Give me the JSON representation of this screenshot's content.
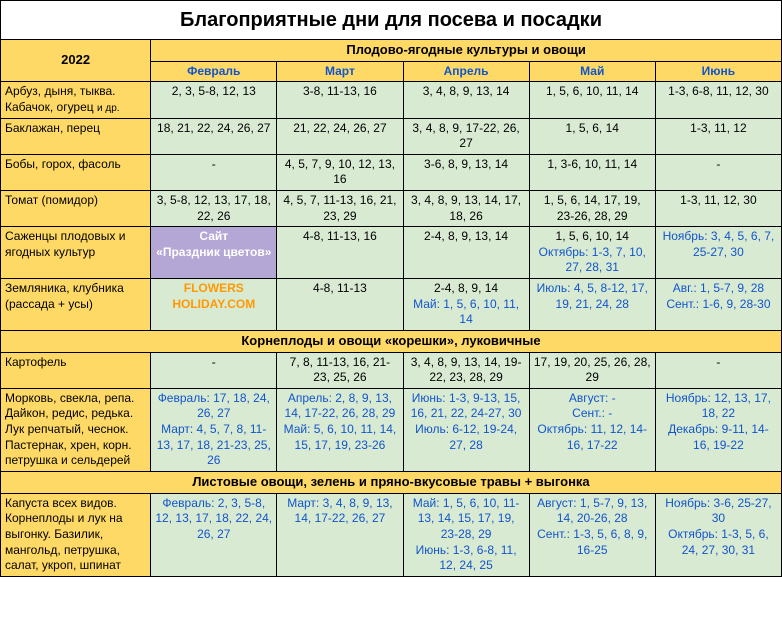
{
  "title": "Благоприятные дни для посева и посадки",
  "year": "2022",
  "section1": "Плодово-ягодные культуры и овощи",
  "section2": "Корнеплоды и овощи «корешки», луковичные",
  "section3": "Листовые овощи, зелень и пряно-вкусовые травы + выгонка",
  "months": {
    "feb": "Февраль",
    "mar": "Март",
    "apr": "Апрель",
    "may": "Май",
    "jun": "Июнь"
  },
  "rows": {
    "r1": {
      "crop": "Арбуз, дыня, тыква. Кабачок, огурец ",
      "cropSmall": "и др.",
      "feb": "2, 3, 5-8, 12, 13",
      "mar": "3-8, 11-13, 16",
      "apr": "3, 4, 8, 9, 13, 14",
      "may": "1, 5, 6, 10, 11, 14",
      "jun": "1-3, 6-8, 11, 12, 30"
    },
    "r2": {
      "crop": "Баклажан, перец",
      "feb": "18, 21, 22, 24, 26, 27",
      "mar": "21, 22, 24, 26, 27",
      "apr": "3, 4, 8, 9, 17-22, 26, 27",
      "may": "1, 5, 6, 14",
      "jun": "1-3, 11, 12"
    },
    "r3": {
      "crop": "Бобы, горох, фасоль",
      "feb": "-",
      "mar": "4, 5, 7, 9, 10, 12, 13, 16",
      "apr": "3-6, 8, 9, 13, 14",
      "may": "1, 3-6, 10, 11, 14",
      "jun": "-"
    },
    "r4": {
      "crop": "Томат (помидор)",
      "feb": "3, 5-8, 12, 13, 17, 18, 22, 26",
      "mar": "4, 5, 7, 11-13, 16, 21, 23, 29",
      "apr": "3, 4, 8, 9, 13, 14, 17, 18, 26",
      "may": "1, 5, 6, 14, 17, 19, 23-26, 28, 29",
      "jun": "1-3, 11, 12, 30"
    },
    "r5": {
      "crop": "Саженцы плодовых и ягодных культур",
      "wm1a": "Сайт",
      "wm1b": "«Праздник цветов»",
      "mar": "4-8, 11-13, 16",
      "apr": "2-4, 8, 9, 13, 14",
      "may": "1, 5, 6, 10, 14",
      "mayOct": "Октябрь: 1-3, 7, 10, 27, 28, 31",
      "jun": "Ноябрь: 3, 4, 5, 6, 7, 25-27, 30"
    },
    "r6": {
      "crop": "Земляника, клубника (рассада + усы)",
      "wm2a": "FLOWERS",
      "wm2b": "HOLIDAY.COM",
      "mar": "4-8, 11-13",
      "apr": "2-4, 8, 9, 14",
      "aprMay": "Май: 1, 5, 6, 10, 11, 14",
      "may": "Июль: 4, 5, 8-12, 17, 19, 21, 24, 28",
      "jun": "Авг.: 1, 5-7, 9, 28",
      "junSep": "Сент.: 1-6, 9, 28-30"
    },
    "r7": {
      "crop": "Картофель",
      "feb": "-",
      "mar": "7, 8, 11-13, 16, 21-23, 25, 26",
      "apr": "3, 4, 8, 9, 13, 14, 19-22, 23, 28, 29",
      "may": "17, 19, 20, 25, 26, 28, 29",
      "jun": "-"
    },
    "r8": {
      "crop": "Морковь, свекла, репа. Дайкон, редис, редька. Лук репчатый, чеснок. Пастернак, хрен, корн. петрушка и сельдерей",
      "feb": "Февраль: 17, 18, 24, 26, 27",
      "febMar": "Март: 4, 5, 7, 8, 11-13, 17, 18, 21-23, 25, 26",
      "mar": "Апрель: 2, 8, 9, 13, 14, 17-22, 26, 28, 29",
      "marMay": "Май: 5, 6, 10, 11, 14, 15, 17, 19, 23-26",
      "apr": "Июнь: 1-3, 9-13, 15, 16, 21, 22, 24-27, 30",
      "aprJul": "Июль: 6-12, 19-24, 27, 28",
      "may": "Август: -",
      "maySep": "Сент.: -",
      "mayOct": "Октябрь: 11, 12, 14-16, 17-22",
      "jun": "Ноябрь: 12, 13, 17, 18, 22",
      "junDec": "Декабрь: 9-11, 14-16, 19-22"
    },
    "r9": {
      "crop": "Капуста всех видов. Корнеплоды и лук на выгонку. Базилик, мангольд, петрушка, салат, укроп, шпинат",
      "feb": "Февраль: 2, 3, 5-8, 12, 13, 17, 18, 22, 24, 26, 27",
      "mar": "Март: 3, 4, 8, 9, 13, 14, 17-22, 26, 27",
      "apr": "Май: 1, 5, 6, 10, 11-13, 14, 15, 17, 19, 23-28, 29",
      "aprJun": "Июнь: 1-3, 6-8, 11, 12, 24, 25",
      "may": "Август: 1, 5-7, 9, 13, 14, 20-26, 28",
      "maySep": "Сент.: 1-3, 5, 6, 8, 9, 16-25",
      "jun": "Ноябрь: 3-6, 25-27, 30",
      "junOct": "Октябрь: 1-3, 5, 6, 24, 27, 30, 31"
    }
  },
  "colors": {
    "header_bg": "#ffd966",
    "data_bg": "#d9ead3",
    "wm_bg": "#b4a7d6"
  }
}
